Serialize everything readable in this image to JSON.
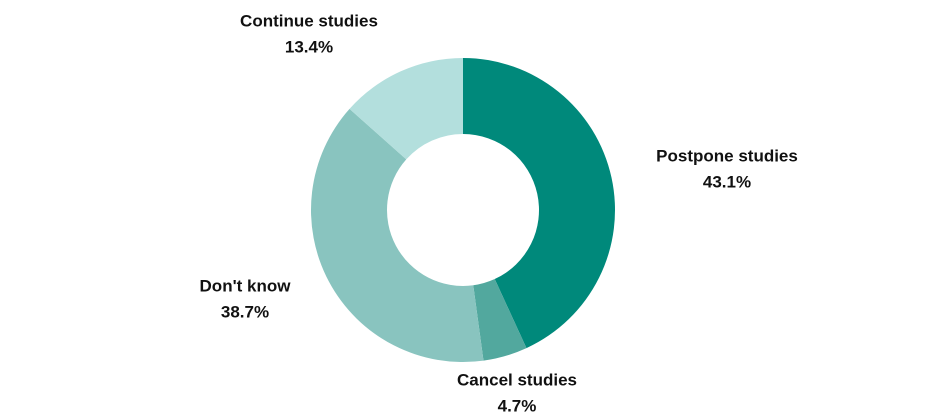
{
  "chart_data": {
    "type": "donut",
    "categories": [
      "Postpone studies",
      "Cancel studies",
      "Don't know",
      "Continue studies"
    ],
    "values": [
      43.1,
      4.7,
      38.7,
      13.4
    ],
    "value_labels": [
      "43.1%",
      "4.7%",
      "38.7%",
      "13.4%"
    ],
    "colors": [
      "#00897b",
      "#52a89e",
      "#89c4bf",
      "#b3dfdd"
    ]
  }
}
